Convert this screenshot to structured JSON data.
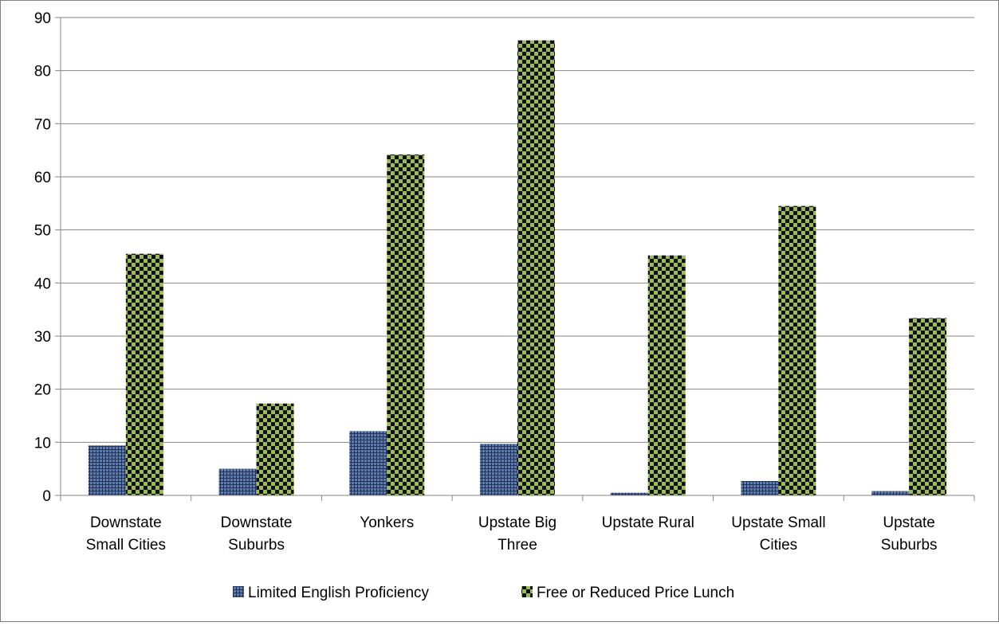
{
  "chart_data": {
    "type": "bar",
    "title": "",
    "xlabel": "",
    "ylabel": "",
    "categories": [
      [
        "Downstate",
        "Small Cities"
      ],
      [
        "Downstate",
        "Suburbs"
      ],
      [
        "Yonkers"
      ],
      [
        "Upstate Big",
        "Three"
      ],
      [
        "Upstate Rural"
      ],
      [
        "Upstate Small",
        "Cities"
      ],
      [
        "Upstate",
        "Suburbs"
      ]
    ],
    "series": [
      {
        "name": "Limited English Proficiency",
        "color": "#4F81BD",
        "pattern": "grid",
        "values": [
          9.4,
          5.0,
          12.1,
          9.7,
          0.5,
          2.7,
          0.8
        ]
      },
      {
        "name": "Free or Reduced Price Lunch",
        "color": "#9BBB59",
        "pattern": "checkerboard",
        "values": [
          45.5,
          17.3,
          64.2,
          85.7,
          45.2,
          54.5,
          33.4
        ]
      }
    ],
    "ylim": [
      0,
      90
    ],
    "yticks": [
      0,
      10,
      20,
      30,
      40,
      50,
      60,
      70,
      80,
      90
    ],
    "grid": true,
    "legend": "bottom"
  }
}
